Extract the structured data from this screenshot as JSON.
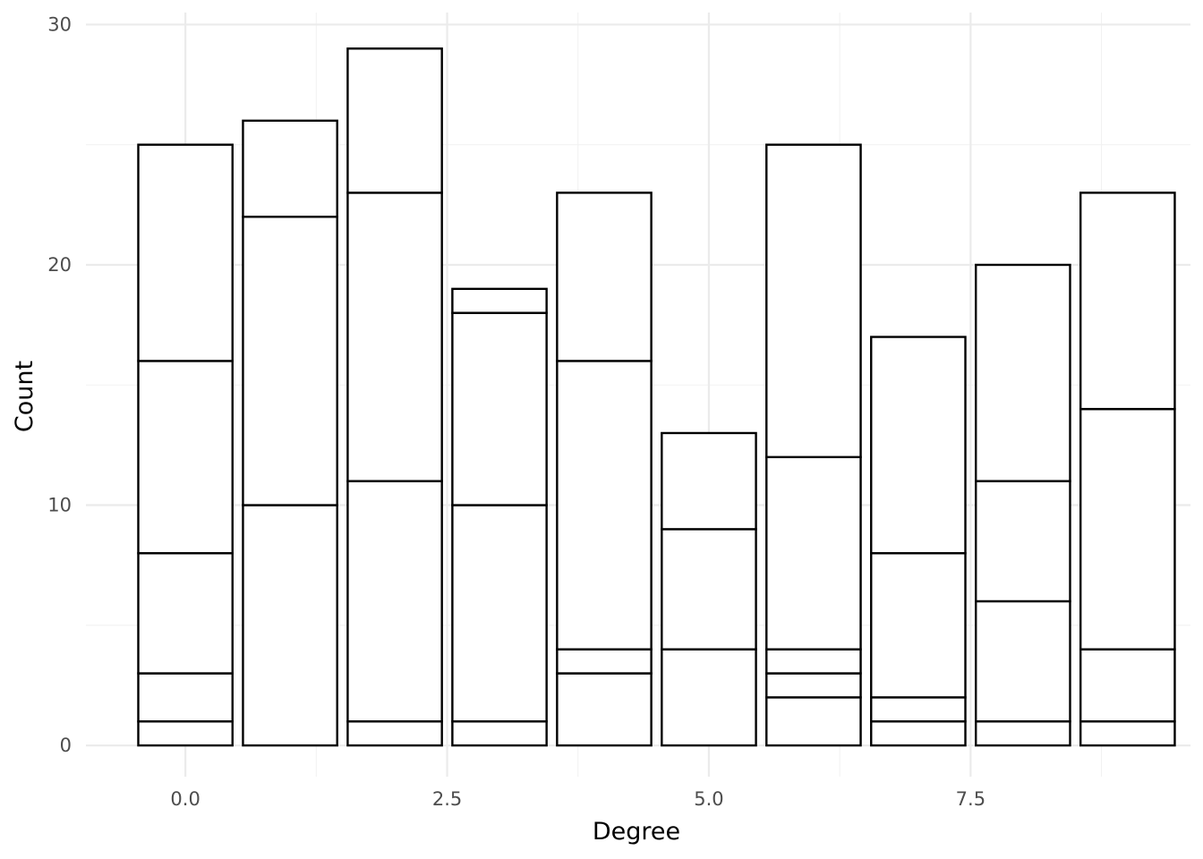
{
  "chart_data": {
    "type": "bar",
    "stacked": true,
    "title": "",
    "xlabel": "Degree",
    "ylabel": "Count",
    "x": [
      0,
      1,
      2,
      3,
      4,
      5,
      6,
      7,
      8,
      9
    ],
    "stacks": [
      [
        1,
        2,
        5,
        8,
        9
      ],
      [
        10,
        12,
        4
      ],
      [
        1,
        10,
        12,
        6
      ],
      [
        1,
        9,
        8,
        1
      ],
      [
        3,
        1,
        12,
        7
      ],
      [
        4,
        5,
        4
      ],
      [
        2,
        1,
        1,
        8,
        13
      ],
      [
        1,
        1,
        6,
        9
      ],
      [
        1,
        5,
        5,
        9
      ],
      [
        1,
        3,
        10,
        9
      ]
    ],
    "totals": [
      25,
      26,
      29,
      19,
      23,
      13,
      25,
      17,
      20,
      23
    ],
    "xlim": [
      -0.95,
      9.6
    ],
    "ylim": [
      -1.3,
      30.5
    ],
    "x_ticks": [
      0.0,
      2.5,
      5.0,
      7.5
    ],
    "x_tick_labels": [
      "0.0",
      "2.5",
      "5.0",
      "7.5"
    ],
    "y_ticks": [
      0,
      10,
      20,
      30
    ],
    "y_tick_labels": [
      "0",
      "10",
      "20",
      "30"
    ],
    "bar_width": 0.9,
    "grid": true,
    "legend": "none",
    "colors": {
      "fill": "#ffffff",
      "outline": "#000000",
      "grid": "#ebebeb",
      "tick_text": "#4d4d4d"
    }
  }
}
